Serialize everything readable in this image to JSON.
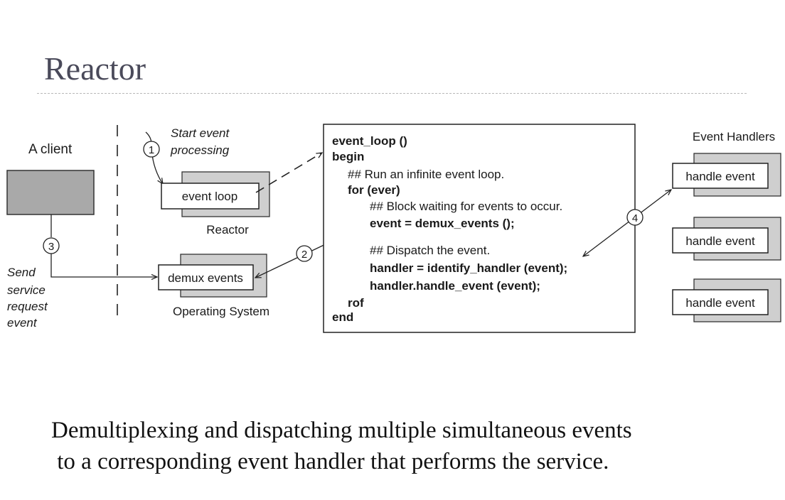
{
  "slide": {
    "title": "Reactor",
    "caption": [
      "Demultiplexing and dispatching multiple simultaneous events",
      " to a corresponding event handler that performs the service."
    ]
  },
  "diagram": {
    "client_label": "A client",
    "send_note": [
      "Send",
      "service",
      "request",
      "event"
    ],
    "start_note": [
      "Start event",
      "processing"
    ],
    "reactor": {
      "box_label": "event loop",
      "caption": "Reactor"
    },
    "os": {
      "box_label": "demux events",
      "caption": "Operating System"
    },
    "event_handlers_title": "Event Handlers",
    "handlers": [
      "handle event",
      "handle event",
      "handle event"
    ],
    "steps": [
      "1",
      "2",
      "3",
      "4"
    ],
    "code_lines": [
      "event_loop ()",
      "begin",
      "## Run an infinite event loop.",
      "for (ever)",
      "## Block waiting for events to occur.",
      "event = demux_events ();",
      "## Dispatch the event.",
      "handler = identify_handler (event);",
      "handler.handle_event (event);",
      "rof",
      "end"
    ]
  }
}
